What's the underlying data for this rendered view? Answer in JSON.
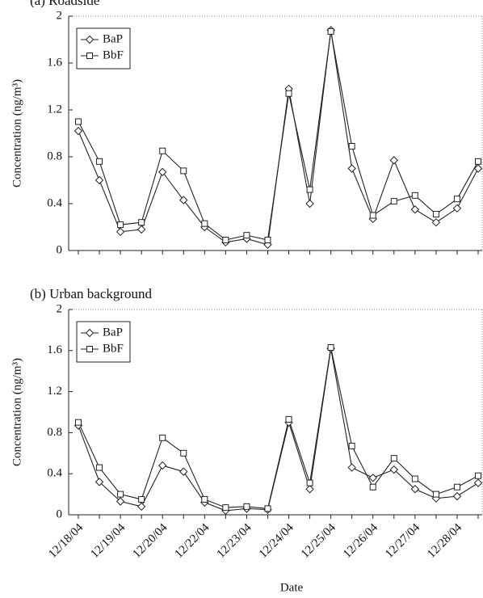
{
  "chart_data": [
    {
      "type": "line",
      "title": "(a) Roadside",
      "ylabel": "Concentration (ng/m³)",
      "categories": [
        "12/18/04",
        null,
        "12/19/04",
        null,
        "12/20/04",
        null,
        "12/22/04",
        null,
        "12/23/04",
        null,
        "12/24/04",
        null,
        "12/25/04",
        null,
        "12/26/04",
        null,
        "12/27/04",
        null,
        "12/28/04",
        null
      ],
      "series": [
        {
          "name": "BaP",
          "color": "#222222",
          "marker": "diamond",
          "values": [
            1.02,
            0.6,
            0.16,
            0.18,
            0.67,
            0.43,
            0.2,
            0.07,
            0.1,
            0.05,
            1.38,
            0.4,
            1.88,
            0.7,
            0.27,
            0.77,
            0.35,
            0.24,
            0.36,
            0.7
          ]
        },
        {
          "name": "BbF",
          "color": "#222222",
          "marker": "square",
          "values": [
            1.1,
            0.76,
            0.22,
            0.24,
            0.85,
            0.68,
            0.23,
            0.09,
            0.13,
            0.09,
            1.34,
            0.52,
            1.87,
            0.89,
            0.3,
            0.42,
            0.47,
            0.31,
            0.44,
            0.76
          ]
        }
      ],
      "ylim": [
        0,
        2
      ],
      "yticks": [
        0,
        0.4,
        0.8,
        1.2,
        1.6,
        2
      ],
      "legend": "upper left"
    },
    {
      "type": "line",
      "title": "(b) Urban background",
      "ylabel": "Concentration (ng/m³)",
      "xlabel": "Date",
      "categories": [
        "12/18/04",
        null,
        "12/19/04",
        null,
        "12/20/04",
        null,
        "12/22/04",
        null,
        "12/23/04",
        null,
        "12/24/04",
        null,
        "12/25/04",
        null,
        "12/26/04",
        null,
        "12/27/04",
        null,
        "12/28/04",
        null
      ],
      "series": [
        {
          "name": "BaP",
          "color": "#222222",
          "marker": "diamond",
          "values": [
            0.87,
            0.32,
            0.13,
            0.08,
            0.48,
            0.42,
            0.12,
            0.04,
            0.06,
            0.05,
            0.9,
            0.25,
            1.62,
            0.46,
            0.36,
            0.44,
            0.25,
            0.16,
            0.18,
            0.31
          ]
        },
        {
          "name": "BbF",
          "color": "#222222",
          "marker": "square",
          "values": [
            0.9,
            0.46,
            0.2,
            0.15,
            0.75,
            0.6,
            0.15,
            0.07,
            0.08,
            0.06,
            0.93,
            0.31,
            1.63,
            0.67,
            0.27,
            0.55,
            0.35,
            0.2,
            0.27,
            0.38
          ]
        }
      ],
      "ylim": [
        0,
        2
      ],
      "yticks": [
        0,
        0.4,
        0.8,
        1.2,
        1.6,
        2
      ],
      "legend": "upper left"
    }
  ]
}
